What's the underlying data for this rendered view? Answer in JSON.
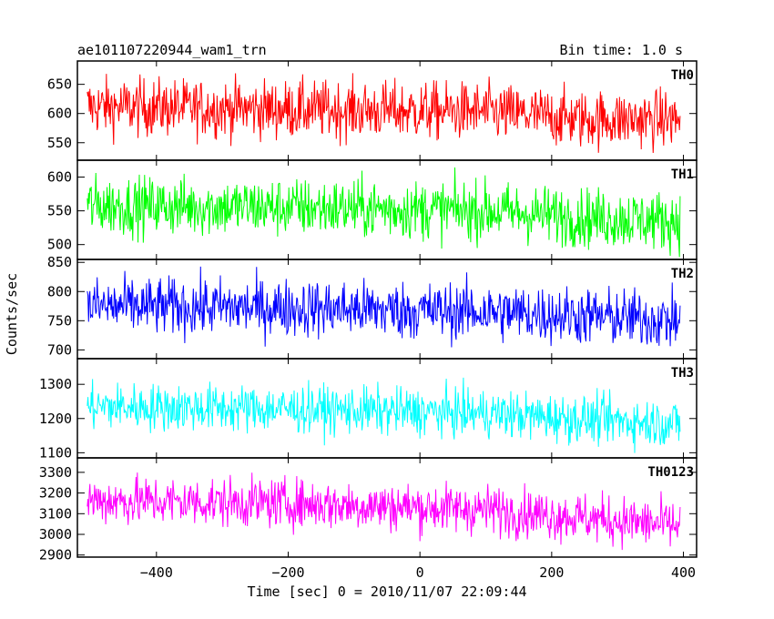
{
  "header": {
    "left": "ae101107220944_wam1_trn",
    "right": "Bin time: 1.0 s"
  },
  "chart_data": {
    "type": "line",
    "xlabel": "Time [sec] 0 = 2010/11/07 22:09:44",
    "ylabel": "Counts/sec",
    "xlim": [
      -520,
      420
    ],
    "x_ticks": [
      -400,
      -200,
      0,
      200,
      400
    ],
    "x_range": [
      -505,
      395
    ],
    "bin_time_s": 1.0,
    "panels": [
      {
        "name": "TH0",
        "color": "#ff0000",
        "ylim": [
          520,
          690
        ],
        "y_ticks": [
          550,
          600,
          650
        ],
        "trend": [
          [
            -505,
            612
          ],
          [
            -200,
            607
          ],
          [
            100,
            603
          ],
          [
            250,
            590
          ],
          [
            395,
            590
          ]
        ],
        "noise": 25
      },
      {
        "name": "TH1",
        "color": "#00ff00",
        "ylim": [
          478,
          625
        ],
        "y_ticks": [
          500,
          550,
          600
        ],
        "trend": [
          [
            -505,
            558
          ],
          [
            -200,
            555
          ],
          [
            100,
            550
          ],
          [
            250,
            540
          ],
          [
            395,
            535
          ]
        ],
        "noise": 22
      },
      {
        "name": "TH2",
        "color": "#0000ff",
        "ylim": [
          685,
          855
        ],
        "y_ticks": [
          700,
          750,
          800,
          850
        ],
        "trend": [
          [
            -505,
            775
          ],
          [
            -200,
            772
          ],
          [
            100,
            765
          ],
          [
            250,
            758
          ],
          [
            395,
            750
          ]
        ],
        "noise": 25
      },
      {
        "name": "TH3",
        "color": "#00ffff",
        "ylim": [
          1085,
          1375
        ],
        "y_ticks": [
          1100,
          1200,
          1300
        ],
        "trend": [
          [
            -505,
            1235
          ],
          [
            -200,
            1228
          ],
          [
            100,
            1215
          ],
          [
            250,
            1198
          ],
          [
            395,
            1185
          ]
        ],
        "noise": 35
      },
      {
        "name": "TH0123",
        "color": "#ff00ff",
        "ylim": [
          2890,
          3370
        ],
        "y_ticks": [
          2900,
          3000,
          3100,
          3200,
          3300
        ],
        "trend": [
          [
            -505,
            3165
          ],
          [
            -200,
            3150
          ],
          [
            100,
            3120
          ],
          [
            250,
            3080
          ],
          [
            395,
            3040
          ]
        ],
        "noise": 60
      }
    ]
  }
}
